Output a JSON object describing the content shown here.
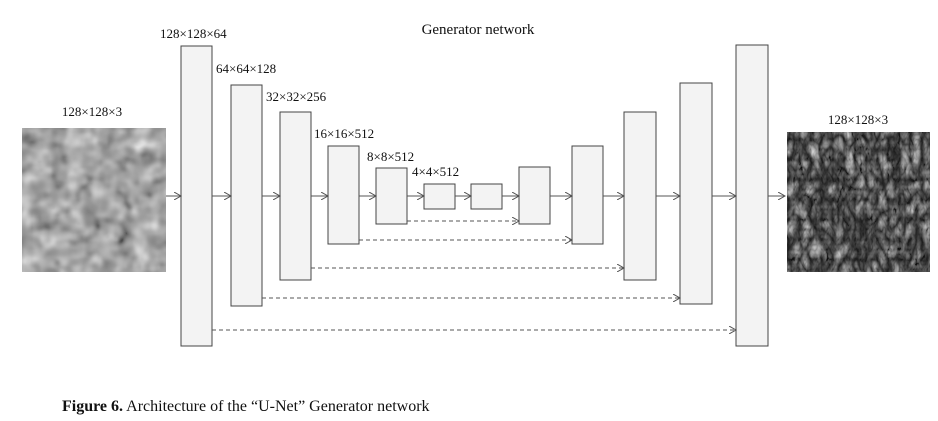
{
  "diagram": {
    "title": "Generator network",
    "input_label": "128×128×3",
    "output_label": "128×128×3",
    "encoder_labels": [
      "128×128×64",
      "64×64×128",
      "32×32×256",
      "16×16×512",
      "8×8×512",
      "4×4×512"
    ]
  },
  "caption": {
    "prefix": "Figure 6.",
    "text": " Architecture of the “U-Net” Generator network"
  }
}
